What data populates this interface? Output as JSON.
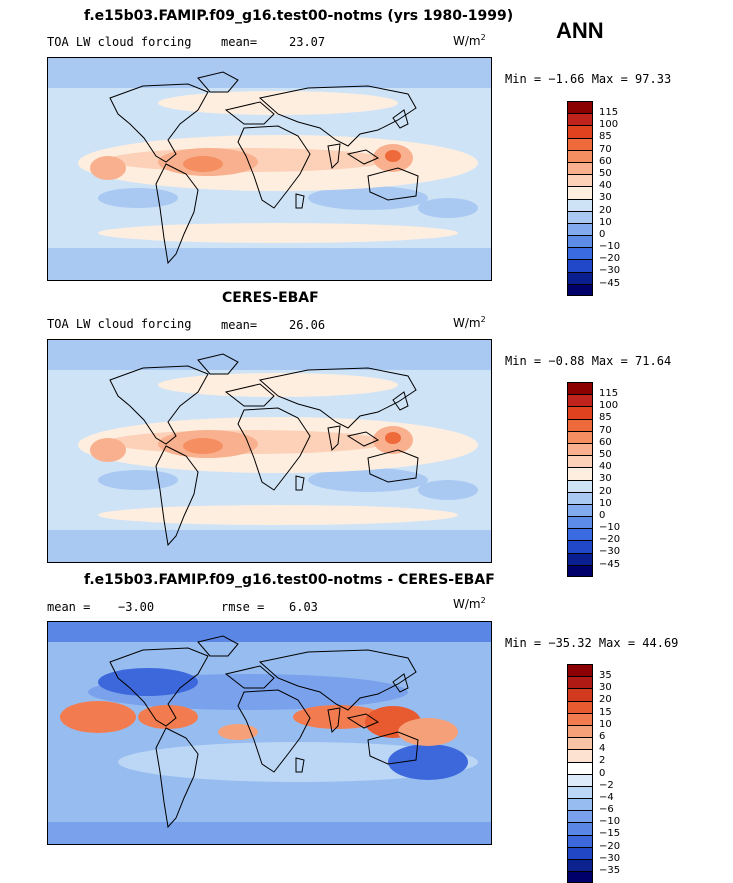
{
  "season": "ANN",
  "units_base": "W/m",
  "units_exp": "2",
  "panels": [
    {
      "title": "f.e15b03.FAMIP.f09_g16.test00-notms (yrs 1980-1999)",
      "left_label": "TOA LW cloud forcing",
      "stat_label": "mean=",
      "stat_value": "23.07",
      "stat2_label": "",
      "stat2_value": "",
      "minmax": "Min =  −1.66 Max =  97.33",
      "colorbar": {
        "labels": [
          "115",
          "100",
          "85",
          "70",
          "60",
          "50",
          "40",
          "30",
          "20",
          "10",
          "0",
          "−10",
          "−20",
          "−30",
          "−45"
        ],
        "colors": [
          "#8b0000",
          "#c0221c",
          "#e0421f",
          "#ef6a3a",
          "#f58f62",
          "#f8b08e",
          "#fcd1b8",
          "#fdeee0",
          "#cfe3f7",
          "#a9c9f2",
          "#82aaee",
          "#5c8be8",
          "#3a6be0",
          "#2048c8",
          "#0a1f8f",
          "#00006a"
        ]
      }
    },
    {
      "title": "CERES-EBAF",
      "left_label": "TOA LW cloud forcing",
      "stat_label": "mean=",
      "stat_value": "26.06",
      "stat2_label": "",
      "stat2_value": "",
      "minmax": "Min =  −0.88 Max =  71.64",
      "colorbar": {
        "labels": [
          "115",
          "100",
          "85",
          "70",
          "60",
          "50",
          "40",
          "30",
          "20",
          "10",
          "0",
          "−10",
          "−20",
          "−30",
          "−45"
        ],
        "colors": [
          "#8b0000",
          "#c0221c",
          "#e0421f",
          "#ef6a3a",
          "#f58f62",
          "#f8b08e",
          "#fcd1b8",
          "#fdeee0",
          "#cfe3f7",
          "#a9c9f2",
          "#82aaee",
          "#5c8be8",
          "#3a6be0",
          "#2048c8",
          "#0a1f8f",
          "#00006a"
        ]
      }
    },
    {
      "title": "f.e15b03.FAMIP.f09_g16.test00-notms - CERES-EBAF",
      "left_label": "mean =",
      "stat_label": "",
      "stat_value": "−3.00",
      "stat2_label": "rmse =",
      "stat2_value": "6.03",
      "minmax": "Min = −35.32 Max =  44.69",
      "colorbar": {
        "labels": [
          "35",
          "30",
          "20",
          "15",
          "10",
          "6",
          "4",
          "2",
          "0",
          "−2",
          "−4",
          "−6",
          "−10",
          "−15",
          "−20",
          "−30",
          "−35"
        ],
        "colors": [
          "#8b0000",
          "#b01a14",
          "#d13a1e",
          "#e85a2f",
          "#f27c4f",
          "#f6a079",
          "#f9c3a6",
          "#fde2d2",
          "#ffffff",
          "#dceaf9",
          "#bcd6f5",
          "#97bdf0",
          "#7aa2ec",
          "#5a86e6",
          "#3c68dc",
          "#2147c4",
          "#0c228f",
          "#00006a"
        ]
      }
    }
  ]
}
